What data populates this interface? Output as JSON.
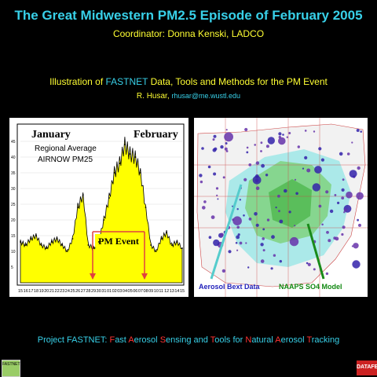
{
  "slide": {
    "title": "The Great Midwestern PM2.5 Episode of February 2005",
    "coordinator": "Coordinator: Donna Kenski, LADCO",
    "illustration_prefix": "Illustration of ",
    "illustration_highlight": "FASTNET",
    "illustration_suffix": " Data, Tools and Methods for the PM Event",
    "author": "R. Husar, ",
    "author_email": "rhusar@me.wustl.edu"
  },
  "chart_panel": {
    "month_left": "January",
    "month_right": "February",
    "subtitle_line1": "Regional Average",
    "subtitle_line2": "AIRNOW PM25",
    "event_label": "PM Event",
    "y_ticks": [
      "5",
      "10",
      "15",
      "20",
      "25",
      "30",
      "35",
      "40",
      "45"
    ],
    "x_ticks": [
      "15",
      "16",
      "17",
      "18",
      "19",
      "20",
      "21",
      "22",
      "23",
      "24",
      "25",
      "26",
      "27",
      "28",
      "29",
      "30",
      "31",
      "01",
      "02",
      "03",
      "04",
      "05",
      "06",
      "07",
      "08",
      "09",
      "10",
      "11",
      "12",
      "13",
      "14",
      "15"
    ]
  },
  "chart_data": {
    "type": "area",
    "xlabel": "",
    "ylabel": "",
    "ylim": [
      0,
      50
    ],
    "x": [
      "15",
      "16",
      "17",
      "18",
      "19",
      "20",
      "21",
      "22",
      "23",
      "24",
      "25",
      "26",
      "27",
      "28",
      "29",
      "30",
      "31",
      "01",
      "02",
      "03",
      "04",
      "05",
      "06",
      "07",
      "08",
      "09",
      "10",
      "11",
      "12",
      "13",
      "14",
      "15"
    ],
    "values": [
      13,
      12,
      14,
      15,
      12,
      11,
      13,
      14,
      12,
      10,
      14,
      24,
      28,
      12,
      11,
      13,
      20,
      27,
      35,
      38,
      44,
      41,
      40,
      35,
      24,
      12,
      10,
      14,
      16,
      12,
      13,
      11
    ],
    "color": "#ffff00"
  },
  "map_panel": {
    "caption_left": "Aerosol Bext Data",
    "caption_right": "NAAPS SO4 Model",
    "caption_left_color": "#2222bb",
    "caption_right_color": "#118811"
  },
  "footer": {
    "prefix": "Project FASTNET: ",
    "words": [
      {
        "cap": "F",
        "rest": "ast "
      },
      {
        "cap": "A",
        "rest": "erosol "
      },
      {
        "cap": "S",
        "rest": "ensing and "
      },
      {
        "cap": "T",
        "rest": "ools for "
      },
      {
        "cap": "N",
        "rest": "atural "
      },
      {
        "cap": "A",
        "rest": "erosol "
      },
      {
        "cap": "T",
        "rest": "racking"
      }
    ]
  },
  "logos": {
    "left": "FASTNET",
    "right": "DATAFED"
  }
}
